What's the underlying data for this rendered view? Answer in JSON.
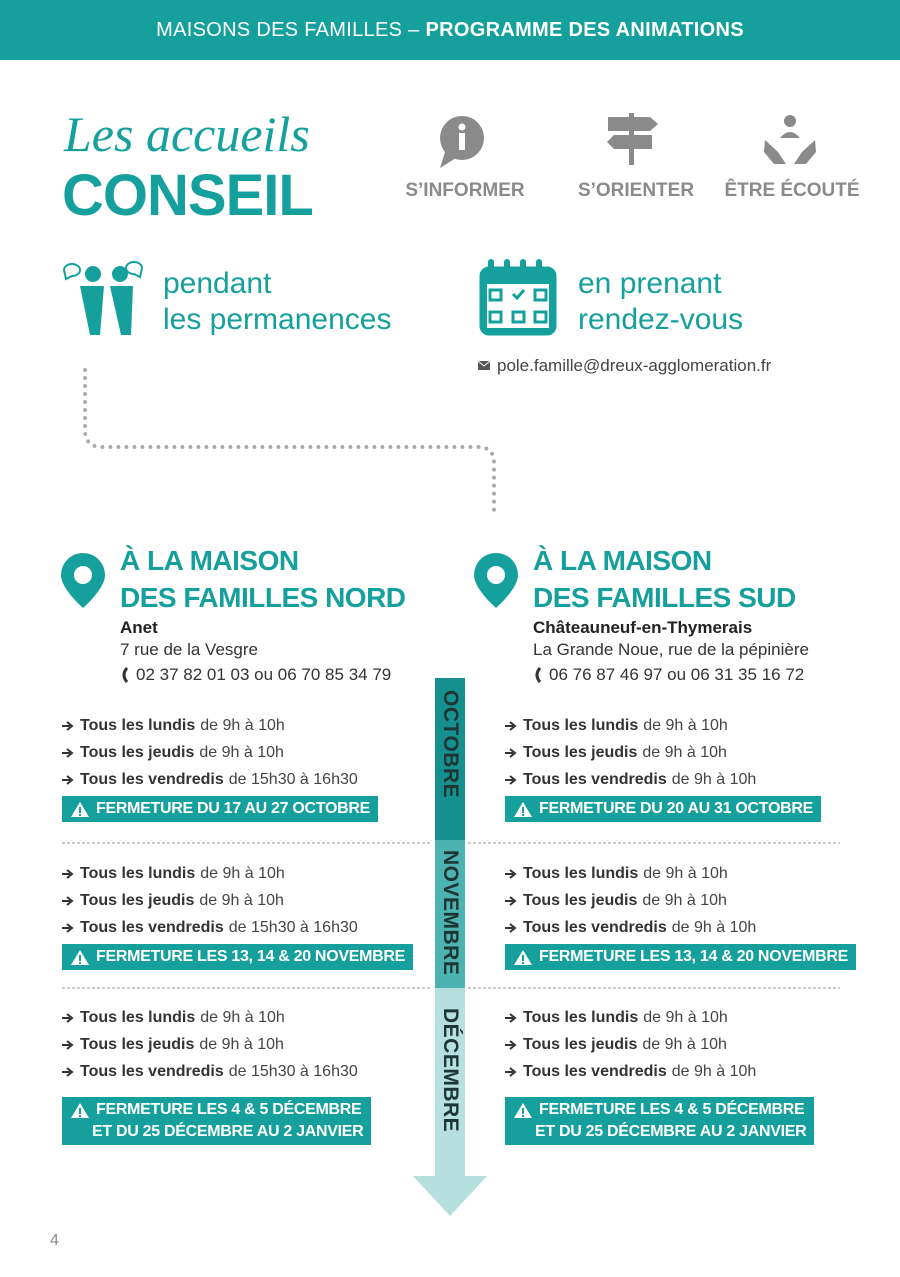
{
  "header": {
    "title_regular": "MAISONS DES FAMILLES –",
    "title_bold": "PROGRAMME DES ANIMATIONS"
  },
  "intro": {
    "script_title": "Les accueils",
    "title": "CONSEIL",
    "features": [
      "S’INFORMER",
      "S’ORIENTER",
      "ÊTRE ÉCOUTÉ"
    ]
  },
  "modes": [
    {
      "line1": "pendant",
      "line2": "les permanences"
    },
    {
      "line1": "en prenant",
      "line2": "rendez-vous",
      "email": "pole.famille@dreux-agglomeration.fr"
    }
  ],
  "months": [
    "OCTOBRE",
    "NOVEMBRE",
    "DÉCEMBRE"
  ],
  "locations": [
    {
      "heading1": "À LA MAISON",
      "heading2": "DES FAMILLES NORD",
      "town": "Anet",
      "address": "7 rue de la Vesgre",
      "phone": "02 37 82 01 03 ou 06 70 85 34 79",
      "months": [
        {
          "schedule": [
            {
              "day": "Tous les lundis",
              "time": "de 9h à 10h"
            },
            {
              "day": "Tous les jeudis",
              "time": "de 9h à 10h"
            },
            {
              "day": "Tous les vendredis",
              "time": "de 15h30 à 16h30"
            }
          ],
          "closure": [
            "FERMETURE DU 17 AU 27 OCTOBRE"
          ]
        },
        {
          "schedule": [
            {
              "day": "Tous les lundis",
              "time": "de 9h à 10h"
            },
            {
              "day": "Tous les jeudis",
              "time": "de 9h à 10h"
            },
            {
              "day": "Tous les vendredis",
              "time": "de 15h30 à 16h30"
            }
          ],
          "closure": [
            "FERMETURE LES 13, 14 & 20 NOVEMBRE"
          ]
        },
        {
          "schedule": [
            {
              "day": "Tous les lundis",
              "time": "de 9h à 10h"
            },
            {
              "day": "Tous les jeudis",
              "time": "de 9h à 10h"
            },
            {
              "day": "Tous les vendredis",
              "time": "de 15h30 à 16h30"
            }
          ],
          "closure": [
            "FERMETURE LES 4 & 5 DÉCEMBRE",
            "ET DU 25 DÉCEMBRE AU 2 JANVIER"
          ]
        }
      ]
    },
    {
      "heading1": "À LA MAISON",
      "heading2": "DES FAMILLES SUD",
      "town": "Châteauneuf-en-Thymerais",
      "address": "La Grande Noue, rue de la pépinière",
      "phone": "06 76 87 46 97 ou 06 31 35 16 72",
      "months": [
        {
          "schedule": [
            {
              "day": "Tous les lundis",
              "time": "de 9h à 10h"
            },
            {
              "day": "Tous les jeudis",
              "time": "de 9h à 10h"
            },
            {
              "day": "Tous les vendredis",
              "time": "de 9h à 10h"
            }
          ],
          "closure": [
            "FERMETURE DU 20 AU 31 OCTOBRE"
          ]
        },
        {
          "schedule": [
            {
              "day": "Tous les lundis",
              "time": "de 9h à 10h"
            },
            {
              "day": "Tous les jeudis",
              "time": "de 9h à 10h"
            },
            {
              "day": "Tous les vendredis",
              "time": "de 9h à 10h"
            }
          ],
          "closure": [
            "FERMETURE LES 13, 14 & 20 NOVEMBRE"
          ]
        },
        {
          "schedule": [
            {
              "day": "Tous les lundis",
              "time": "de 9h à 10h"
            },
            {
              "day": "Tous les jeudis",
              "time": "de 9h à 10h"
            },
            {
              "day": "Tous les vendredis",
              "time": "de 9h à 10h"
            }
          ],
          "closure": [
            "FERMETURE LES 4 & 5 DÉCEMBRE",
            "ET DU 25 DÉCEMBRE AU 2 JANVIER"
          ]
        }
      ]
    }
  ],
  "page_number": "4"
}
